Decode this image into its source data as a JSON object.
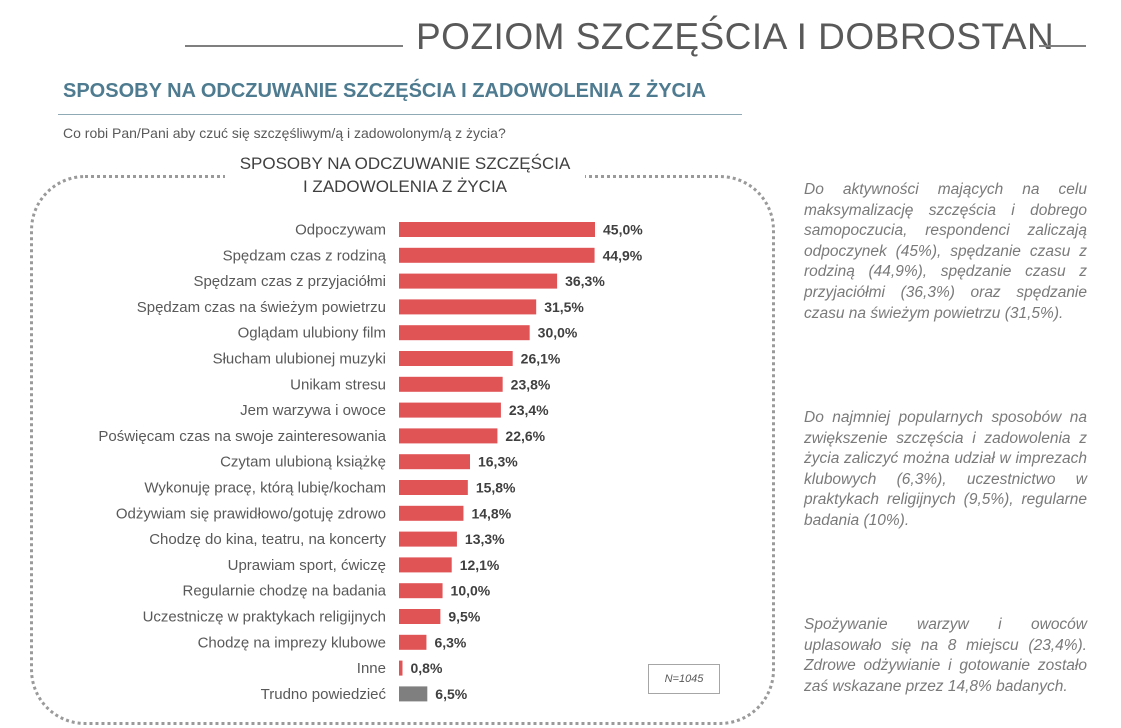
{
  "header": {
    "title": "POZIOM SZCZĘŚCIA I DOBROSTAN"
  },
  "section": {
    "title": "SPOSOBY NA ODCZUWANIE SZCZĘŚCIA I ZADOWOLENIA Z ŻYCIA",
    "question": "Co robi Pan/Pani aby czuć się szczęśliwym/ą i zadowolonym/ą z życia?"
  },
  "chart_title_lines": [
    "SPOSOBY NA ODCZUWANIE SZCZĘŚCIA",
    "I ZADOWOLENIA Z ŻYCIA"
  ],
  "sample_note": "N=1045",
  "colors": {
    "bar": "#e05456",
    "bar_other": "#7f7f7f",
    "accent": "#4e7b8f"
  },
  "chart_data": {
    "type": "bar",
    "orientation": "horizontal",
    "title": "SPOSOBY NA ODCZUWANIE SZCZĘŚCIA I ZADOWOLENIA Z ŻYCIA",
    "unit": "%",
    "categories": [
      "Odpoczywam",
      "Spędzam czas z rodziną",
      "Spędzam czas z przyjaciółmi",
      "Spędzam czas na świeżym powietrzu",
      "Oglądam ulubiony film",
      "Słucham ulubionej muzyki",
      "Unikam stresu",
      "Jem warzywa i owoce",
      "Poświęcam czas na swoje zainteresowania",
      "Czytam ulubioną książkę",
      "Wykonuję pracę, którą lubię/kocham",
      "Odżywiam się prawidłowo/gotuję zdrowo",
      "Chodzę do kina, teatru, na koncerty",
      "Uprawiam sport, ćwiczę",
      "Regularnie chodzę na badania",
      "Uczestniczę w praktykach religijnych",
      "Chodzę na imprezy klubowe",
      "Inne",
      "Trudno powiedzieć"
    ],
    "values": [
      45.0,
      44.9,
      36.3,
      31.5,
      30.0,
      26.1,
      23.8,
      23.4,
      22.6,
      16.3,
      15.8,
      14.8,
      13.3,
      12.1,
      10.0,
      9.5,
      6.3,
      0.8,
      6.5
    ],
    "value_labels": [
      "45,0%",
      "44,9%",
      "36,3%",
      "31,5%",
      "30,0%",
      "26,1%",
      "23,8%",
      "23,4%",
      "22,6%",
      "16,3%",
      "15,8%",
      "14,8%",
      "13,3%",
      "12,1%",
      "10,0%",
      "9,5%",
      "6,3%",
      "0,8%",
      "6,5%"
    ],
    "highlight_gray": [
      false,
      false,
      false,
      false,
      false,
      false,
      false,
      false,
      false,
      false,
      false,
      false,
      false,
      false,
      false,
      false,
      false,
      false,
      true
    ],
    "xlim": [
      0,
      45
    ],
    "grid": false,
    "legend": "none"
  },
  "side_paragraphs": [
    "Do aktywności mających na celu maksymalizację szczęścia i dobrego samopoczucia, respondenci zaliczają odpoczynek (45%), spędzanie czasu z rodziną (44,9%), spędzanie czasu z przyjaciółmi (36,3%) oraz spędzanie czasu na świeżym powietrzu (31,5%).",
    "Do najmniej popularnych sposobów na zwiększenie szczęścia i zadowolenia z życia zaliczyć można udział w imprezach klubowych (6,3%), uczestnictwo w praktykach religijnych (9,5%), regularne badania (10%).",
    "Spożywanie warzyw i owoców uplasowało się na 8 miejscu (23,4%). Zdrowe odżywianie i gotowanie zostało zaś wskazane przez 14,8% badanych."
  ]
}
